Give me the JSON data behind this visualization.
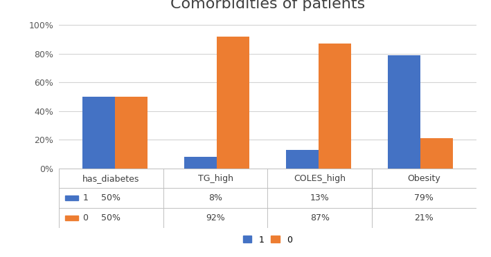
{
  "title": "Comorbidities of patients",
  "categories": [
    "has_diabetes",
    "TG_high",
    "COLES_high",
    "Obesity"
  ],
  "series_1_label": "1",
  "series_0_label": "0",
  "values_1": [
    0.5,
    0.08,
    0.13,
    0.79
  ],
  "values_0": [
    0.5,
    0.92,
    0.87,
    0.21
  ],
  "table_row1": [
    "50%",
    "8%",
    "13%",
    "79%"
  ],
  "table_row0": [
    "50%",
    "92%",
    "87%",
    "21%"
  ],
  "color_1": "#4472C4",
  "color_0": "#ED7D31",
  "ylim": [
    0,
    1.05
  ],
  "yticks": [
    0,
    0.2,
    0.4,
    0.6,
    0.8,
    1.0
  ],
  "ytick_labels": [
    "0%",
    "20%",
    "40%",
    "60%",
    "80%",
    "100%"
  ],
  "background_color": "#FFFFFF",
  "grid_color": "#D3D3D3",
  "title_fontsize": 16,
  "axis_fontsize": 9,
  "table_fontsize": 9,
  "legend_fontsize": 9,
  "bar_width": 0.32
}
